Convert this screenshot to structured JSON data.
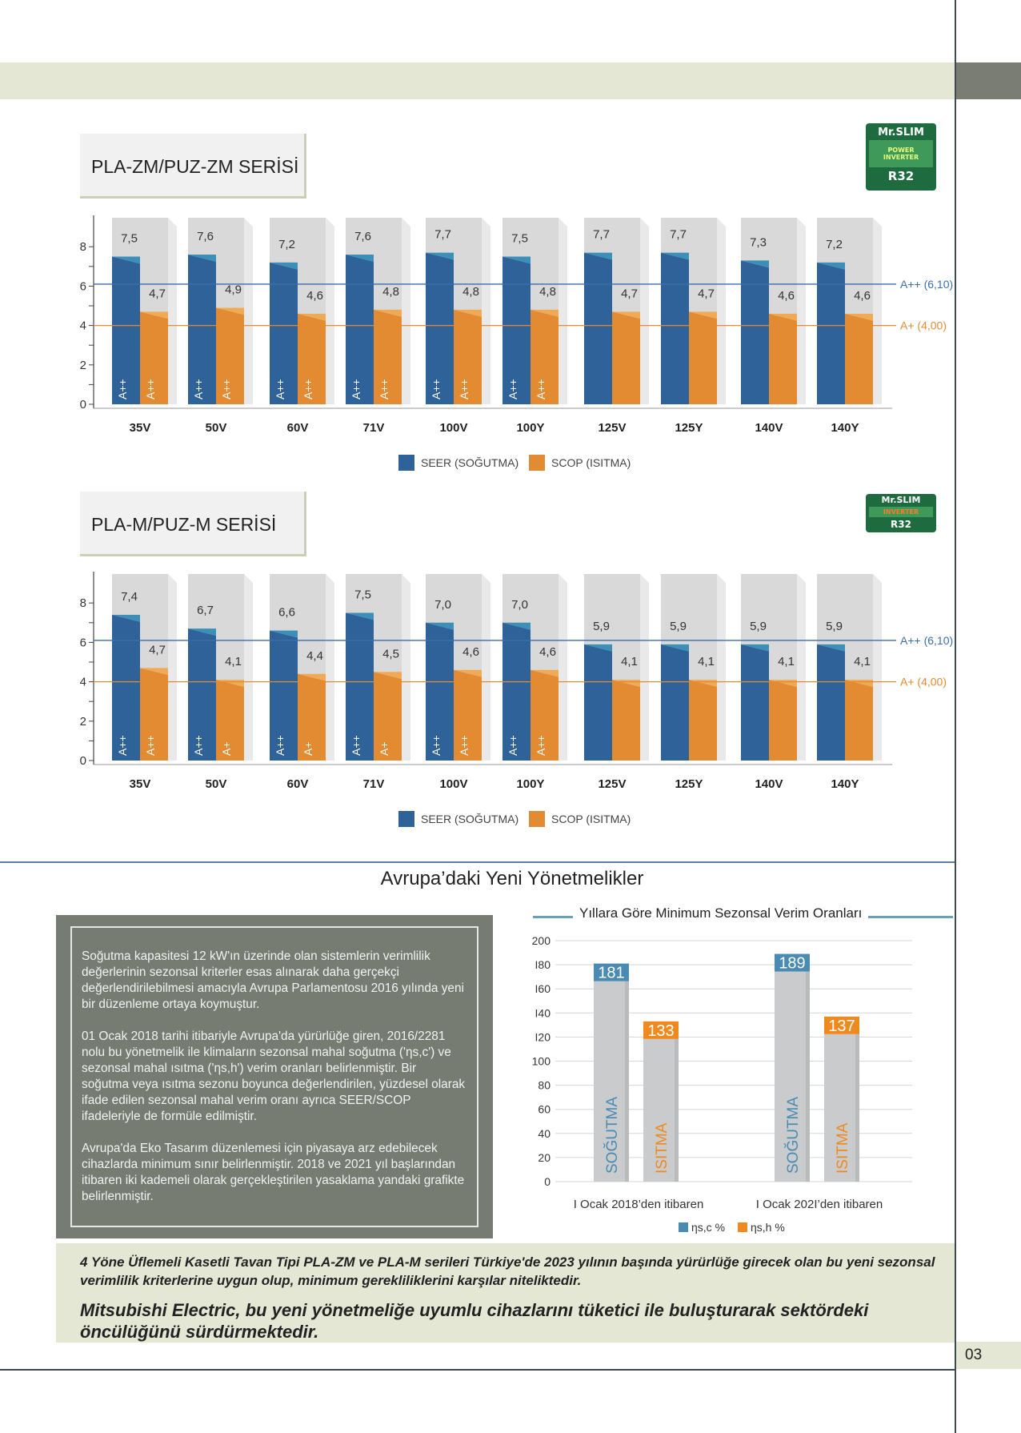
{
  "page": {
    "number": "03"
  },
  "section1": {
    "title": "PLA-ZM/PUZ-ZM SERİSİ",
    "badge": {
      "top": "Mr.SLIM",
      "mid": "POWER INVERTER",
      "bottom": "R32"
    }
  },
  "section2": {
    "title": "PLA-M/PUZ-M SERİSİ",
    "badge": {
      "top": "Mr.SLIM",
      "mid": "INVERTER",
      "bottom": "R32"
    }
  },
  "legend": {
    "seer": "SEER (SOĞUTMA)",
    "scop": "SCOP (ISITMA)"
  },
  "reference_lines": {
    "app": "A++ (6,10)",
    "ap": "A+ (4,00)"
  },
  "colors": {
    "seer": "#2f6298",
    "scop": "#e28b32",
    "app_line": "#3a6fa8",
    "ap_line": "#e28b32",
    "bar_back": "#d9d9d9"
  },
  "regulations": {
    "title": "Avrupa’daki Yeni Yönetmelikler",
    "paragraphs": [
      "Soğutma kapasitesi 12 kW'ın üzerinde olan sistemlerin verimlilik değerlerinin sezonsal kriterler esas alınarak daha gerçekçi değerlendirilebilmesi amacıyla Avrupa Parlamentosu 2016 yılında yeni bir düzenleme ortaya koymuştur.",
      "01 Ocak 2018 tarihi itibariyle Avrupa'da yürürlüğe giren, 2016/2281 nolu bu yönetmelik ile klimaların sezonsal mahal soğutma ('ηs,c') ve sezonsal mahal ısıtma ('ηs,h') verim oranları belirlenmiştir. Bir soğutma veya ısıtma sezonu boyunca değerlendirilen, yüzdesel olarak ifade edilen sezonsal mahal verim oranı ayrıca SEER/SCOP ifadeleriyle de formüle edilmiştir.",
      "Avrupa'da Eko Tasarım düzenlemesi için piyasaya arz edebilecek cihazlarda minimum sınır belirlenmiştir. 2018 ve 2021 yıl başlarından itibaren iki kademeli olarak gerçekleştirilen yasaklama yandaki grafikte belirlenmiştir."
    ]
  },
  "footer": {
    "line1": "4 Yöne Üflemeli Kasetli Tavan Tipi PLA-ZM ve PLA-M serileri Türkiye'de 2023 yılının başında yürürlüğe girecek olan bu yeni sezonsal verimlilik kriterlerine uygun olup, minimum gerekliliklerini karşılar niteliktedir.",
    "line2": "Mitsubishi Electric, bu yeni yönetmeliğe uyumlu cihazlarını tüketici ile buluşturarak sektördeki öncülüğünü sürdürmektedir."
  },
  "chart_data": [
    {
      "type": "bar",
      "title": "PLA-ZM/PUZ-ZM SERİSİ",
      "categories": [
        "35V",
        "50V",
        "60V",
        "71V",
        "100V",
        "100Y",
        "125V",
        "125Y",
        "140V",
        "140Y"
      ],
      "series": [
        {
          "name": "SEER (SOĞUTMA)",
          "values": [
            7.5,
            7.6,
            7.2,
            7.6,
            7.7,
            7.5,
            7.7,
            7.7,
            7.3,
            7.2
          ],
          "value_labels": [
            "7,5",
            "7,6",
            "7,2",
            "7,6",
            "7,7",
            "7,5",
            "7,7",
            "7,7",
            "7,3",
            "7,2"
          ],
          "class_labels": [
            "A++",
            "A++",
            "A++",
            "A++",
            "A++",
            "A++",
            "",
            "",
            "",
            ""
          ]
        },
        {
          "name": "SCOP (ISITMA)",
          "values": [
            4.7,
            4.9,
            4.6,
            4.8,
            4.8,
            4.8,
            4.7,
            4.7,
            4.6,
            4.6
          ],
          "value_labels": [
            "4,7",
            "4,9",
            "4,6",
            "4,8",
            "4,8",
            "4,8",
            "4,7",
            "4,7",
            "4,6",
            "4,6"
          ],
          "class_labels": [
            "A++",
            "A++",
            "A++",
            "A++",
            "A++",
            "A++",
            "",
            "",
            "",
            ""
          ]
        }
      ],
      "yticks": [
        "0",
        "2",
        "4",
        "6",
        "8"
      ],
      "ylim": [
        0,
        9.5
      ],
      "reference_lines": [
        {
          "value": 6.1,
          "label": "A++ (6,10)"
        },
        {
          "value": 4.0,
          "label": "A+ (4,00)"
        }
      ],
      "legend_position": "bottom"
    },
    {
      "type": "bar",
      "title": "PLA-M/PUZ-M SERİSİ",
      "categories": [
        "35V",
        "50V",
        "60V",
        "71V",
        "100V",
        "100Y",
        "125V",
        "125Y",
        "140V",
        "140Y"
      ],
      "series": [
        {
          "name": "SEER (SOĞUTMA)",
          "values": [
            7.4,
            6.7,
            6.6,
            7.5,
            7.0,
            7.0,
            5.9,
            5.9,
            5.9,
            5.9
          ],
          "value_labels": [
            "7,4",
            "6,7",
            "6,6",
            "7,5",
            "7,0",
            "7,0",
            "5,9",
            "5,9",
            "5,9",
            "5,9"
          ],
          "class_labels": [
            "A++",
            "A++",
            "A++",
            "A++",
            "A++",
            "A++",
            "",
            "",
            "",
            ""
          ]
        },
        {
          "name": "SCOP (ISITMA)",
          "values": [
            4.7,
            4.1,
            4.4,
            4.5,
            4.6,
            4.6,
            4.1,
            4.1,
            4.1,
            4.1
          ],
          "value_labels": [
            "4,7",
            "4,1",
            "4,4",
            "4,5",
            "4,6",
            "4,6",
            "4,1",
            "4,1",
            "4,1",
            "4,1"
          ],
          "class_labels": [
            "A++",
            "A+",
            "A+",
            "A+",
            "A++",
            "A++",
            "",
            "",
            "",
            ""
          ]
        }
      ],
      "yticks": [
        "0",
        "2",
        "4",
        "6",
        "8"
      ],
      "ylim": [
        0,
        9.5
      ],
      "reference_lines": [
        {
          "value": 6.1,
          "label": "A++ (6,10)"
        },
        {
          "value": 4.0,
          "label": "A+ (4,00)"
        }
      ],
      "legend_position": "bottom"
    },
    {
      "type": "bar",
      "title": "Yıllara Göre Minimum Sezonsal Verim Oranları",
      "categories": [
        "I Ocak 2018’den itibaren",
        "I Ocak 202I’den itibaren"
      ],
      "series": [
        {
          "name": "ηs,c %",
          "values": [
            181,
            189
          ],
          "bar_label": "SOĞUTMA"
        },
        {
          "name": "ηs,h %",
          "values": [
            133,
            137
          ],
          "bar_label": "ISITMA"
        }
      ],
      "yticks": [
        "0",
        "20",
        "40",
        "60",
        "80",
        "100",
        "I20",
        "I40",
        "I60",
        "I80",
        "200"
      ],
      "ylim": [
        0,
        200
      ],
      "grid": true,
      "legend_position": "bottom"
    }
  ]
}
